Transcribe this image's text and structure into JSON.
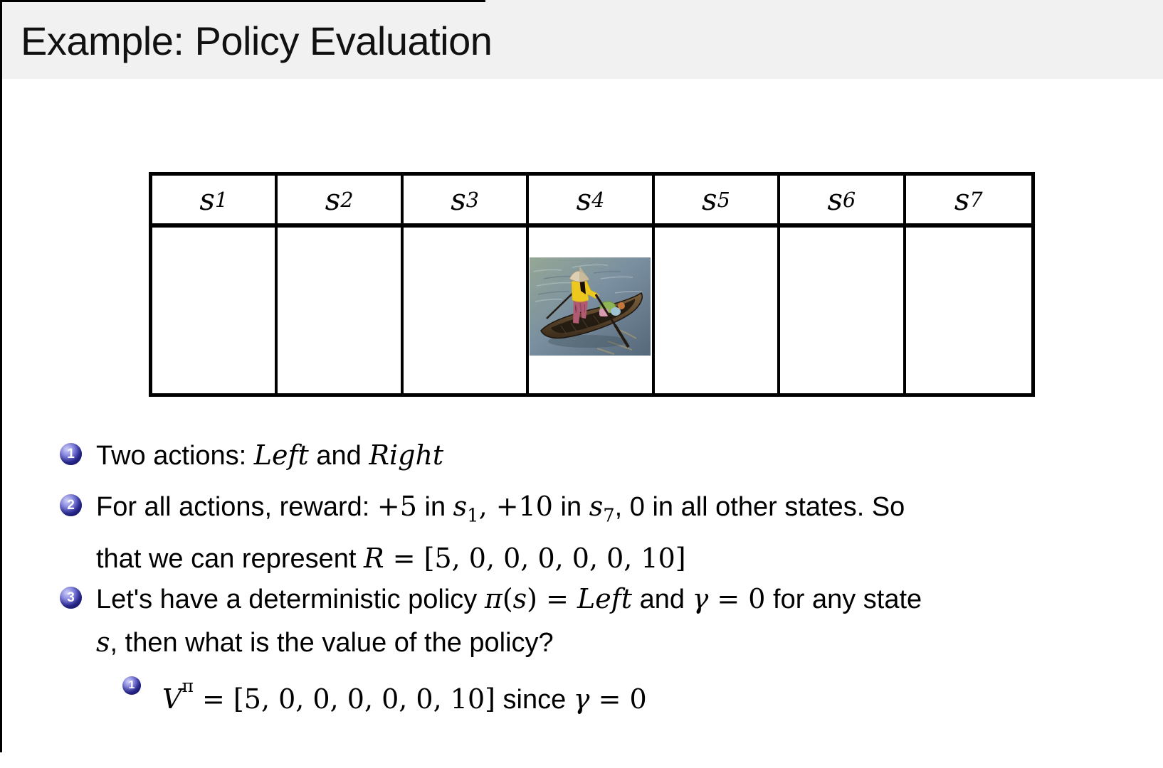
{
  "slide": {
    "title": "Example: Policy Evaluation"
  },
  "colors": {
    "title_bar_bg": "#f1f1f2",
    "bullet_ball_blue": "#3434ab",
    "text": "#000000",
    "table_border": "#000000"
  },
  "table": {
    "headers": [
      {
        "label": [
          {
            "t": "s",
            "c": "mi"
          },
          {
            "t": "1",
            "c": "m msub"
          }
        ]
      },
      {
        "label": [
          {
            "t": "s",
            "c": "mi"
          },
          {
            "t": "2",
            "c": "m msub"
          }
        ]
      },
      {
        "label": [
          {
            "t": "s",
            "c": "mi"
          },
          {
            "t": "3",
            "c": "m msub"
          }
        ]
      },
      {
        "label": [
          {
            "t": "s",
            "c": "mi"
          },
          {
            "t": "4",
            "c": "m msub"
          }
        ]
      },
      {
        "label": [
          {
            "t": "s",
            "c": "mi"
          },
          {
            "t": "5",
            "c": "m msub"
          }
        ]
      },
      {
        "label": [
          {
            "t": "s",
            "c": "mi"
          },
          {
            "t": "6",
            "c": "m msub"
          }
        ]
      },
      {
        "label": [
          {
            "t": "s",
            "c": "mi"
          },
          {
            "t": "7",
            "c": "m msub"
          }
        ]
      }
    ],
    "boat_cell_index": 4,
    "boat_image_description": "person in yellow top and conical hat standing and rowing a wooden boat on water"
  },
  "bullets": {
    "items": [
      {
        "number": "1",
        "level": 1,
        "lines": [
          [
            {
              "t": "Two actions: ",
              "c": ""
            },
            {
              "t": "Left",
              "c": "mi"
            },
            {
              "t": " and ",
              "c": ""
            },
            {
              "t": "Right",
              "c": "mi"
            }
          ]
        ]
      },
      {
        "number": "2",
        "level": 1,
        "lines": [
          [
            {
              "t": "For all actions, reward: ",
              "c": ""
            },
            {
              "t": "+5",
              "c": "m"
            },
            {
              "t": " in ",
              "c": ""
            },
            {
              "t": "s",
              "c": "mi"
            },
            {
              "t": "1",
              "c": "m msub"
            },
            {
              "t": ", ",
              "c": "m"
            },
            {
              "t": "+10",
              "c": "m"
            },
            {
              "t": " in ",
              "c": ""
            },
            {
              "t": "s",
              "c": "mi"
            },
            {
              "t": "7",
              "c": "m msub"
            },
            {
              "t": ", 0 in all other states. So",
              "c": ""
            }
          ],
          [
            {
              "t": "that we can represent ",
              "c": ""
            },
            {
              "t": "R",
              "c": "mi"
            },
            {
              "t": " = [5, 0, 0, 0, 0, 0, 10]",
              "c": "m"
            }
          ]
        ]
      },
      {
        "number": "3",
        "level": 1,
        "lines": [
          [
            {
              "t": "Let's have a deterministic policy ",
              "c": ""
            },
            {
              "t": "π",
              "c": "mi"
            },
            {
              "t": "(",
              "c": "m"
            },
            {
              "t": "s",
              "c": "mi"
            },
            {
              "t": ") = ",
              "c": "m"
            },
            {
              "t": "Left",
              "c": "mi"
            },
            {
              "t": " and ",
              "c": ""
            },
            {
              "t": "γ",
              "c": "mi"
            },
            {
              "t": " = 0",
              "c": "m"
            },
            {
              "t": " for any state",
              "c": ""
            }
          ],
          [
            {
              "t": "s",
              "c": "mi"
            },
            {
              "t": ", then what is the value of the policy?",
              "c": ""
            }
          ]
        ]
      },
      {
        "number": "1",
        "level": 2,
        "lines": [
          [
            {
              "t": "V",
              "c": "mi"
            },
            {
              "t": "π",
              "c": "msup m"
            },
            {
              "t": " = [5, 0, 0, 0, 0, 0, 10]",
              "c": "m"
            },
            {
              "t": " since ",
              "c": ""
            },
            {
              "t": "γ",
              "c": "mi"
            },
            {
              "t": " = 0",
              "c": "m"
            }
          ]
        ]
      }
    ]
  }
}
